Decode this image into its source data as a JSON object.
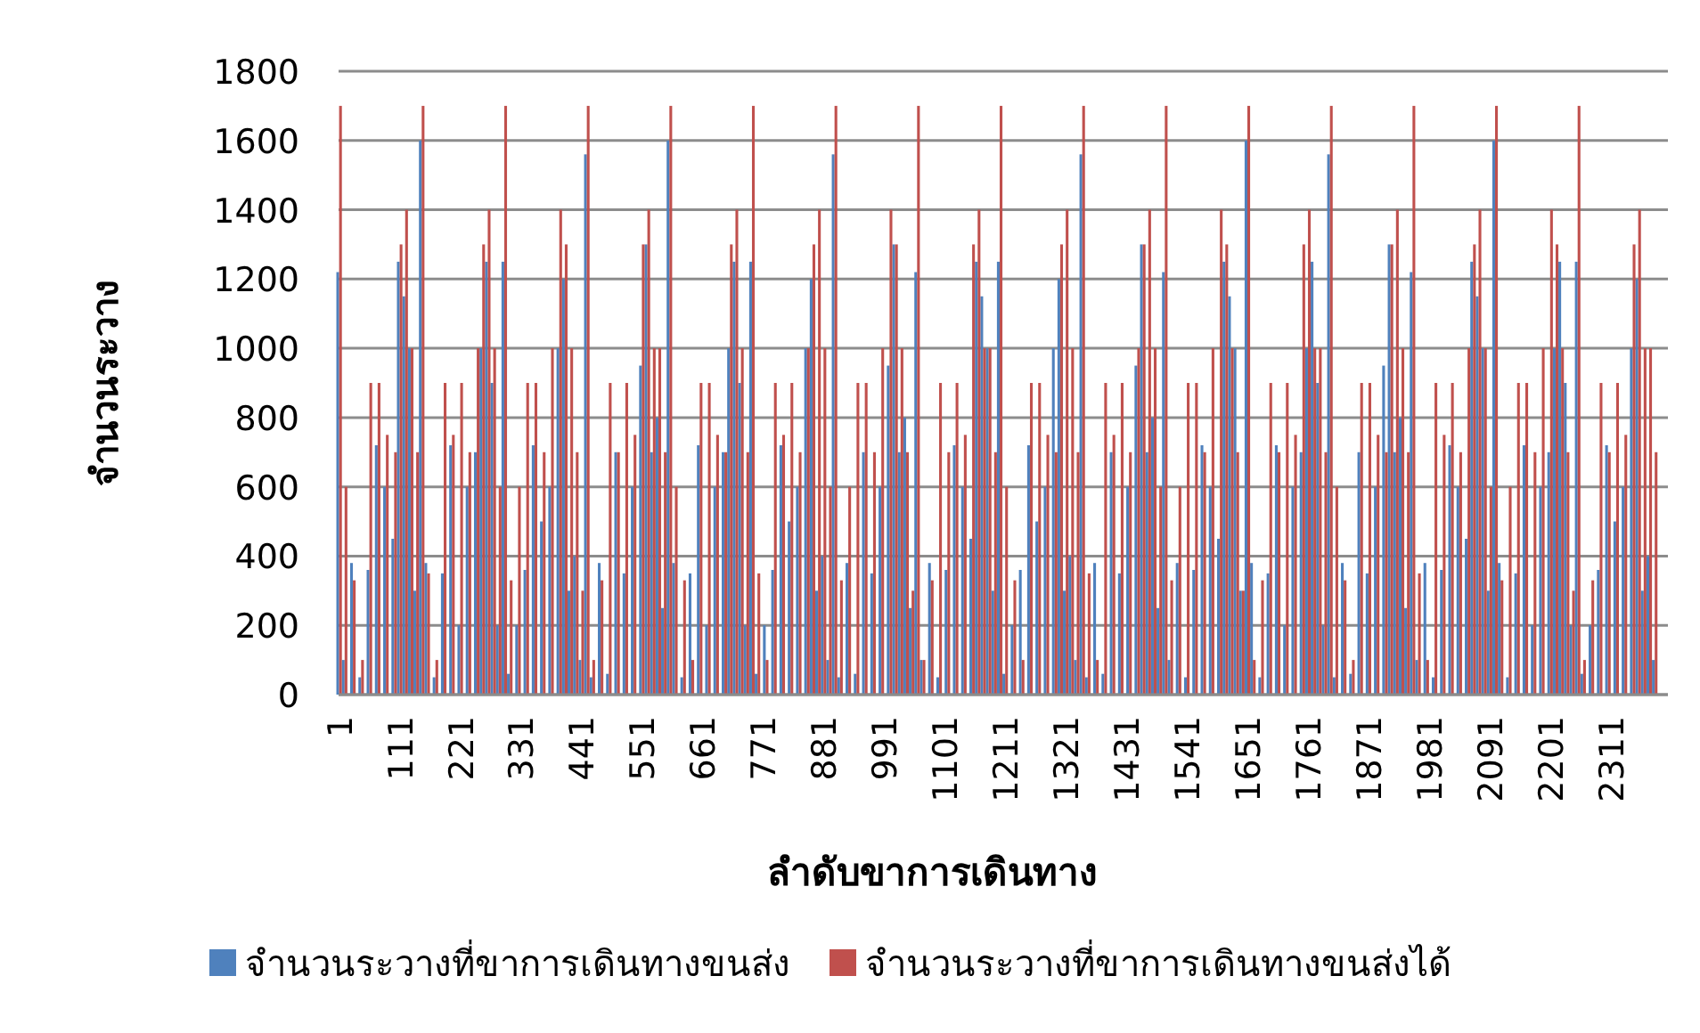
{
  "chart_data": {
    "type": "bar",
    "xlabel": "ลำดับขาการเดินทาง",
    "ylabel": "จำนวนระวาง",
    "x": [
      1,
      11,
      26,
      41,
      56,
      71,
      86,
      101,
      111,
      121,
      131,
      141,
      151,
      161,
      176,
      191,
      206,
      221,
      236,
      251,
      261,
      271,
      281,
      291,
      301,
      311,
      326,
      341,
      356,
      371,
      386,
      401,
      411,
      421,
      431,
      441,
      451,
      461,
      476,
      491,
      506,
      521,
      536,
      551,
      561,
      571,
      581,
      591,
      601,
      611,
      626,
      641,
      656,
      671,
      686,
      701,
      711,
      721,
      731,
      741,
      751,
      761,
      776,
      791,
      806,
      821,
      836,
      851,
      861,
      871,
      881,
      891,
      901,
      911,
      926,
      941,
      956,
      971,
      986,
      1001,
      1011,
      1021,
      1031,
      1041,
      1051,
      1061,
      1076,
      1091,
      1106,
      1121,
      1136,
      1151,
      1161,
      1171,
      1181,
      1191,
      1201,
      1211,
      1226,
      1241,
      1256,
      1271,
      1286,
      1301,
      1311,
      1321,
      1331,
      1341,
      1351,
      1361,
      1376,
      1391,
      1406,
      1421,
      1436,
      1451,
      1461,
      1471,
      1481,
      1491,
      1501,
      1511,
      1526,
      1541,
      1556,
      1571,
      1586,
      1601,
      1611,
      1621,
      1631,
      1641,
      1651,
      1661,
      1676,
      1691,
      1706,
      1721,
      1736,
      1751,
      1761,
      1771,
      1781,
      1791,
      1801,
      1811,
      1826,
      1841,
      1856,
      1871,
      1886,
      1901,
      1911,
      1921,
      1931,
      1941,
      1951,
      1961,
      1976,
      1991,
      2006,
      2021,
      2036,
      2051,
      2061,
      2071,
      2081,
      2091,
      2101,
      2111,
      2126,
      2141,
      2156,
      2171,
      2186,
      2201,
      2211,
      2221,
      2231,
      2241,
      2251,
      2261,
      2276,
      2291,
      2306,
      2321,
      2336,
      2351,
      2361,
      2371,
      2381,
      2391
    ],
    "series": [
      {
        "name": "จำนวนระวางที่ขาการเดินทางขนส่ง",
        "color": "#4f81bd",
        "values": [
          1220,
          100,
          380,
          50,
          360,
          720,
          600,
          450,
          1250,
          1150,
          1000,
          300,
          1600,
          380,
          50,
          350,
          720,
          200,
          600,
          700,
          1000,
          1250,
          900,
          200,
          1250,
          60,
          200,
          360,
          720,
          500,
          600,
          1000,
          1200,
          300,
          400,
          100,
          1560,
          50,
          380,
          60,
          700,
          350,
          600,
          950,
          1300,
          700,
          800,
          250,
          1600,
          380,
          50,
          350,
          720,
          200,
          600,
          700,
          1000,
          1250,
          900,
          200,
          1250,
          60,
          200,
          360,
          720,
          500,
          600,
          1000,
          1200,
          300,
          400,
          100,
          1560,
          50,
          380,
          60,
          700,
          350,
          600,
          950,
          1300,
          700,
          800,
          250,
          1220,
          100,
          380,
          50,
          360,
          720,
          600,
          450,
          1250,
          1150,
          1000,
          300,
          1250,
          60,
          200,
          360,
          720,
          500,
          600,
          1000,
          1200,
          300,
          400,
          100,
          1560,
          50,
          380,
          60,
          700,
          350,
          600,
          950,
          1300,
          700,
          800,
          250,
          1220,
          100,
          380,
          50,
          360,
          720,
          600,
          450,
          1250,
          1150,
          1000,
          300,
          1600,
          380,
          50,
          350,
          720,
          200,
          600,
          700,
          1000,
          1250,
          900,
          200,
          1560,
          50,
          380,
          60,
          700,
          350,
          600,
          950,
          1300,
          700,
          800,
          250,
          1220,
          100,
          380,
          50,
          360,
          720,
          600,
          450,
          1250,
          1150,
          1000,
          300,
          1600,
          380,
          50,
          350,
          720,
          200,
          600,
          700,
          1000,
          1250,
          900,
          200,
          1250,
          60,
          200,
          360,
          720,
          500,
          600,
          1000,
          1200,
          300,
          400,
          100
        ]
      },
      {
        "name": "จำนวนระวางที่ขาการเดินทางขนส่งได้",
        "color": "#c0504d",
        "values": [
          1700,
          600,
          330,
          100,
          900,
          900,
          750,
          700,
          1300,
          1400,
          1000,
          700,
          1700,
          350,
          100,
          900,
          750,
          900,
          700,
          1000,
          1300,
          1400,
          1000,
          600,
          1700,
          330,
          600,
          900,
          900,
          700,
          1000,
          1400,
          1300,
          1000,
          700,
          300,
          1700,
          100,
          330,
          900,
          700,
          900,
          750,
          1300,
          1400,
          1000,
          1000,
          700,
          1700,
          600,
          330,
          100,
          900,
          900,
          750,
          700,
          1300,
          1400,
          1000,
          700,
          1700,
          350,
          100,
          900,
          750,
          900,
          700,
          1000,
          1300,
          1400,
          1000,
          600,
          1700,
          330,
          600,
          900,
          900,
          700,
          1000,
          1400,
          1300,
          1000,
          700,
          300,
          1700,
          100,
          330,
          900,
          700,
          900,
          750,
          1300,
          1400,
          1000,
          1000,
          700,
          1700,
          600,
          330,
          100,
          900,
          900,
          750,
          700,
          1300,
          1400,
          1000,
          700,
          1700,
          350,
          100,
          900,
          750,
          900,
          700,
          1000,
          1300,
          1400,
          1000,
          600,
          1700,
          330,
          600,
          900,
          900,
          700,
          1000,
          1400,
          1300,
          1000,
          700,
          300,
          1700,
          100,
          330,
          900,
          700,
          900,
          750,
          1300,
          1400,
          1000,
          1000,
          700,
          1700,
          600,
          330,
          100,
          900,
          900,
          750,
          700,
          1300,
          1400,
          1000,
          700,
          1700,
          350,
          100,
          900,
          750,
          900,
          700,
          1000,
          1300,
          1400,
          1000,
          600,
          1700,
          330,
          600,
          900,
          900,
          700,
          1000,
          1400,
          1300,
          1000,
          700,
          300,
          1700,
          100,
          330,
          900,
          700,
          900,
          750,
          1300,
          1400,
          1000,
          1000,
          700
        ]
      }
    ],
    "xlim": [
      0,
      2415
    ],
    "ylim": [
      0,
      1800
    ],
    "xticks": [
      1,
      111,
      221,
      331,
      441,
      551,
      661,
      771,
      881,
      991,
      1101,
      1211,
      1321,
      1431,
      1541,
      1651,
      1761,
      1871,
      1981,
      2091,
      2201,
      2311
    ],
    "yticks": [
      0,
      200,
      400,
      600,
      800,
      1000,
      1200,
      1400,
      1600,
      1800
    ],
    "grid": "y",
    "legend": "bottom"
  }
}
